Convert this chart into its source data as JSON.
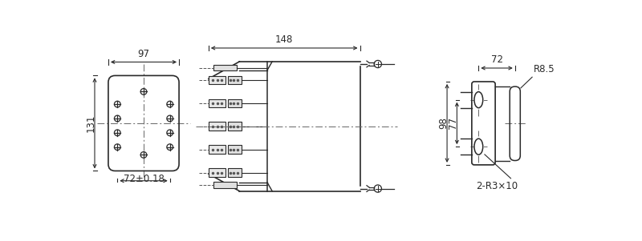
{
  "bg_color": "#ffffff",
  "lc": "#2a2a2a",
  "dc": "#2a2a2a",
  "view1": {
    "label_72": "72±0.18",
    "label_131": "131",
    "label_97": "97"
  },
  "view2": {
    "label_148": "148"
  },
  "view3": {
    "label_98": "98",
    "label_77": "77",
    "label_72": "72",
    "label_r3": "2-R3×10",
    "label_r85": "R8.5"
  }
}
